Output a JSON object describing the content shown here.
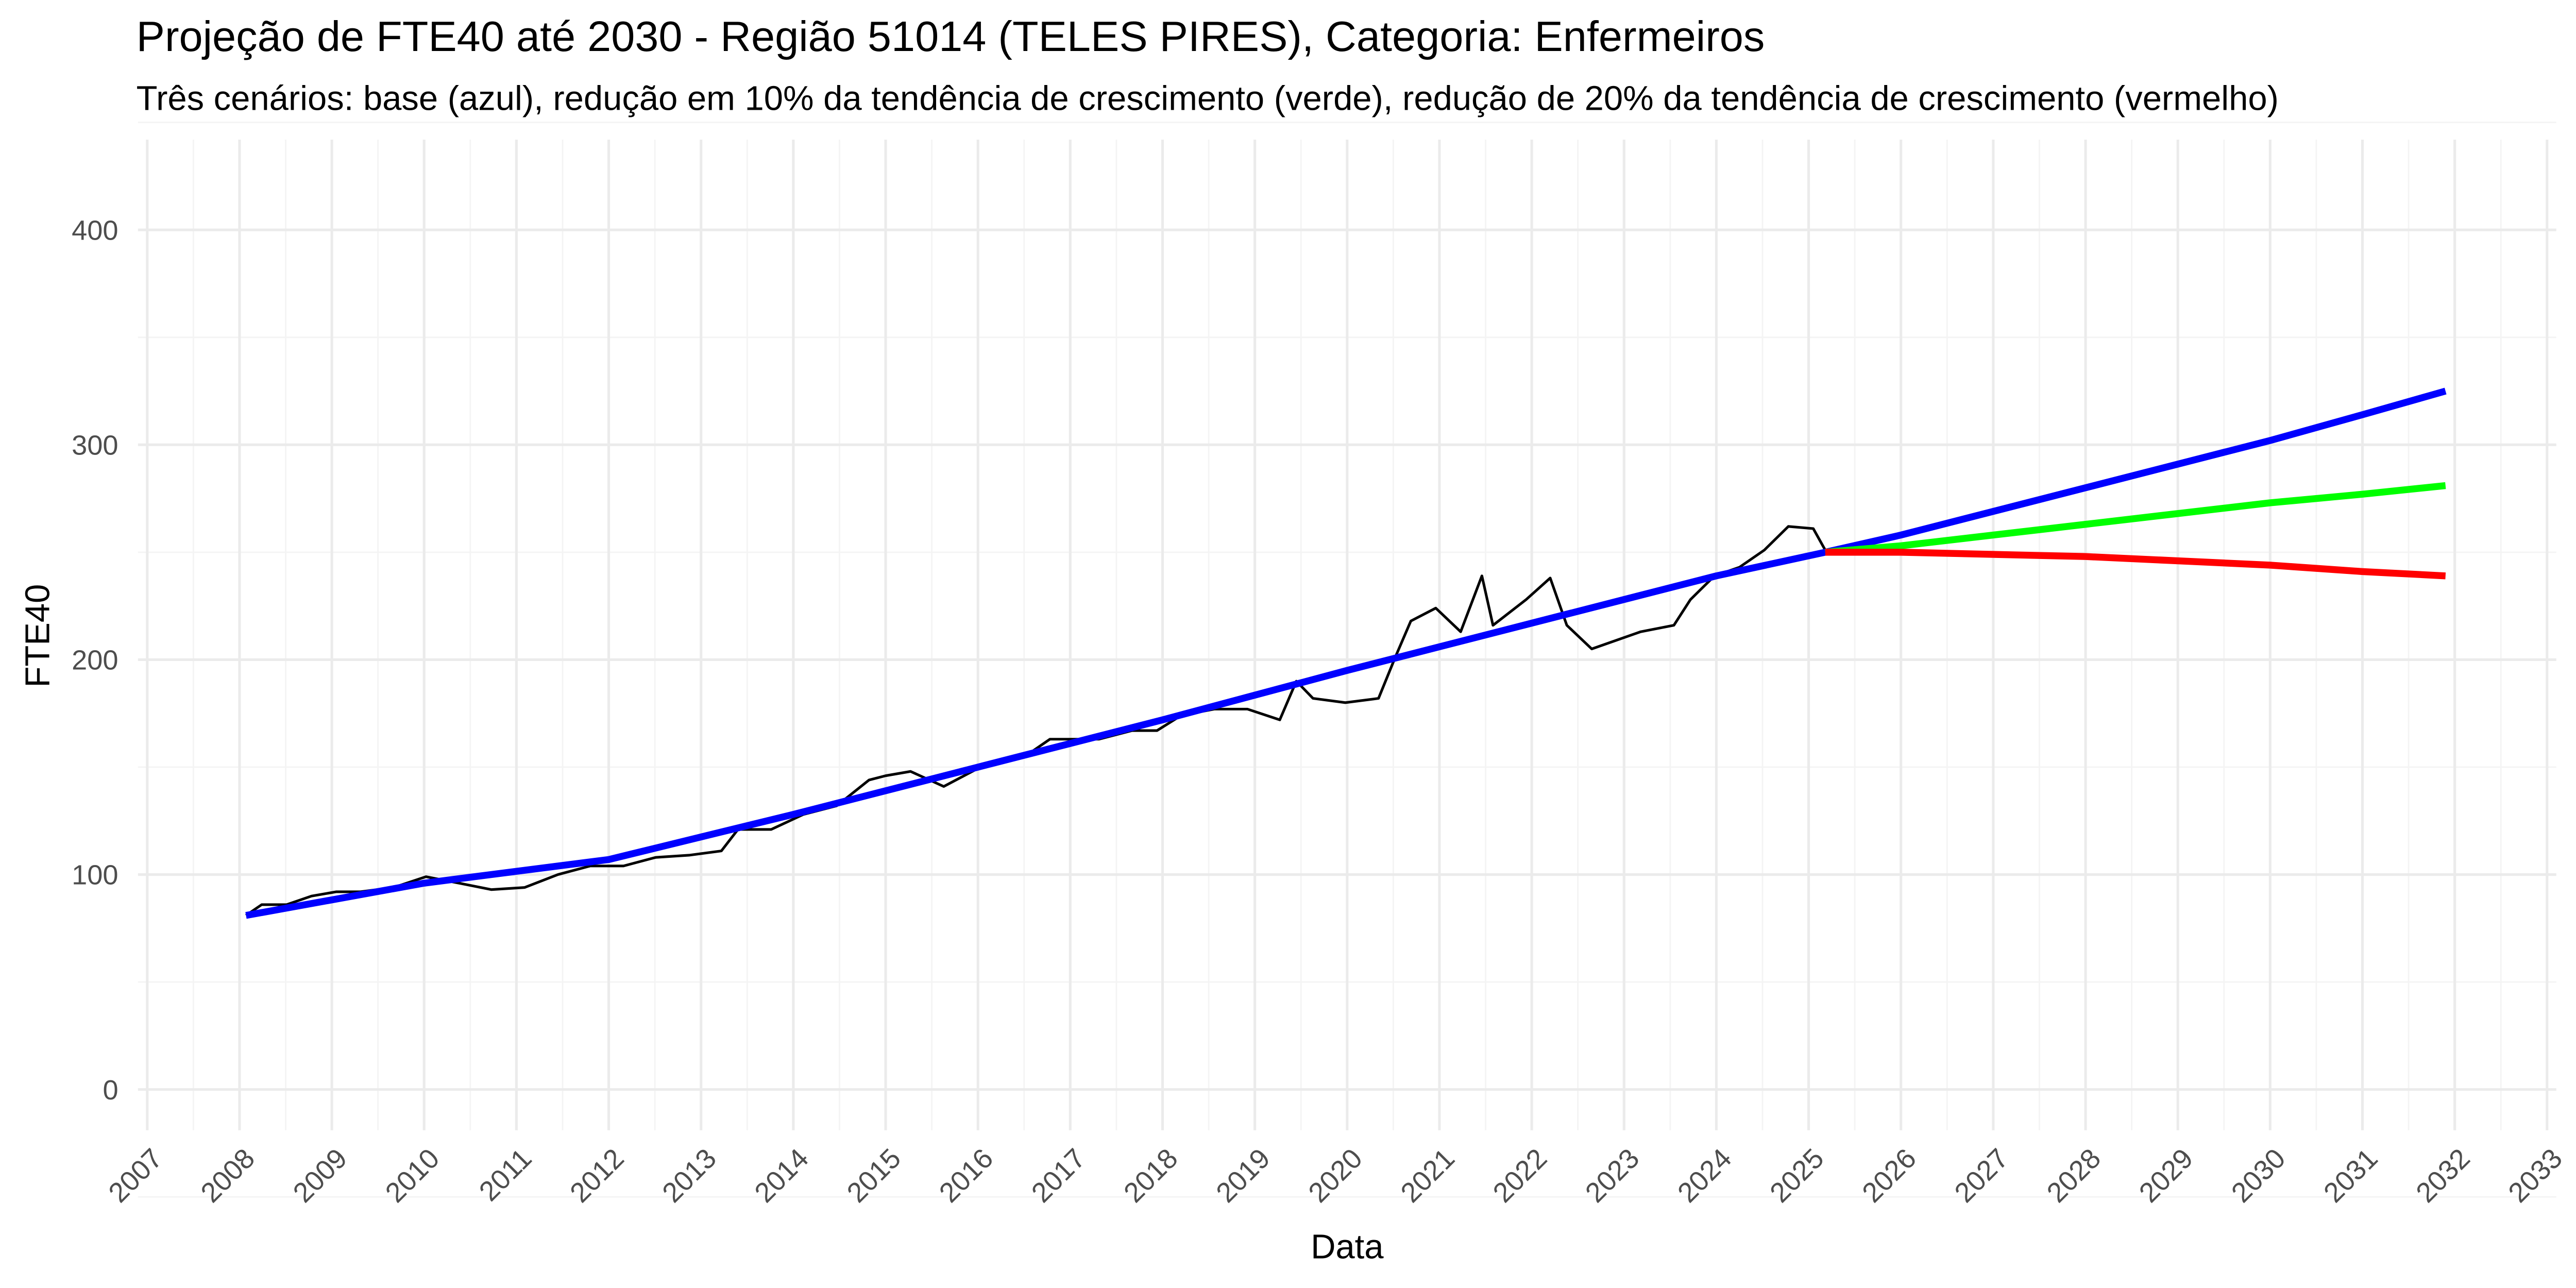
{
  "chart_data": {
    "type": "line",
    "title": "Projeção de FTE40 até 2030 - Região 51014 (TELES PIRES), Categoria: Enfermeiros",
    "subtitle": "Três cenários: base (azul), redução em 10% da tendência de crescimento (verde), redução de 20% da tendência de crescimento (vermelho)",
    "xlabel": "Data",
    "ylabel": "FTE40",
    "xlim": [
      2006.9,
      2033.1
    ],
    "xticks": [
      2007,
      2008,
      2009,
      2010,
      2011,
      2012,
      2013,
      2014,
      2015,
      2016,
      2017,
      2018,
      2019,
      2020,
      2021,
      2022,
      2023,
      2024,
      2025,
      2026,
      2027,
      2028,
      2029,
      2030,
      2031,
      2032,
      2033
    ],
    "ylim": [
      -19,
      442
    ],
    "yticks": [
      0,
      100,
      200,
      300,
      400
    ],
    "grid": true,
    "series": [
      {
        "color": "#000000",
        "x": [
          2008.07,
          2008.24,
          2008.51,
          2008.78,
          2009.05,
          2009.31,
          2009.67,
          2010.02,
          2010.38,
          2010.73,
          2011.09,
          2011.45,
          2011.8,
          2012.16,
          2012.51,
          2012.87,
          2013.22,
          2013.4,
          2013.76,
          2014.11,
          2014.47,
          2014.82,
          2015.0,
          2015.27,
          2015.63,
          2016.07,
          2016.51,
          2016.78,
          2017.31,
          2017.67,
          2017.94,
          2018.2,
          2018.56,
          2018.92,
          2019.27,
          2019.45,
          2019.63,
          2019.98,
          2020.34,
          2020.52,
          2020.69,
          2020.96,
          2021.23,
          2021.46,
          2021.58,
          2021.94,
          2022.2,
          2022.38,
          2022.65,
          2023.18,
          2023.54,
          2023.72,
          2023.98,
          2024.25,
          2024.52,
          2024.78,
          2025.05,
          2025.18
        ],
        "values": [
          81,
          86,
          86,
          90,
          92,
          92,
          94,
          99,
          96,
          93,
          94,
          100,
          104,
          104,
          108,
          109,
          111,
          121,
          121,
          128,
          132,
          144,
          146,
          148,
          141,
          151,
          155,
          163,
          163,
          167,
          167,
          174,
          177,
          177,
          172,
          190,
          182,
          180,
          182,
          201,
          218,
          224,
          213,
          239,
          216,
          228,
          238,
          216,
          205,
          213,
          216,
          228,
          239,
          243,
          251,
          262,
          261,
          251
        ]
      },
      {
        "color": "#0000ff",
        "x": [
          2008.07,
          2010,
          2012,
          2014,
          2016,
          2018,
          2020,
          2022,
          2024,
          2025.18,
          2026,
          2027,
          2028,
          2029,
          2030,
          2031,
          2031.9
        ],
        "values": [
          81,
          96,
          107,
          128,
          150,
          172,
          195,
          217,
          239,
          250,
          258,
          269,
          280,
          291,
          302,
          314,
          325
        ]
      },
      {
        "color": "#00ff00",
        "x": [
          2025.18,
          2026,
          2027,
          2028,
          2029,
          2030,
          2031,
          2031.9
        ],
        "values": [
          250,
          253,
          258,
          263,
          268,
          273,
          277,
          281
        ]
      },
      {
        "color": "#ff0000",
        "x": [
          2025.18,
          2026,
          2027,
          2028,
          2029,
          2030,
          2031,
          2031.9
        ],
        "values": [
          250,
          250,
          249,
          248,
          246,
          244,
          241,
          239
        ]
      }
    ]
  }
}
